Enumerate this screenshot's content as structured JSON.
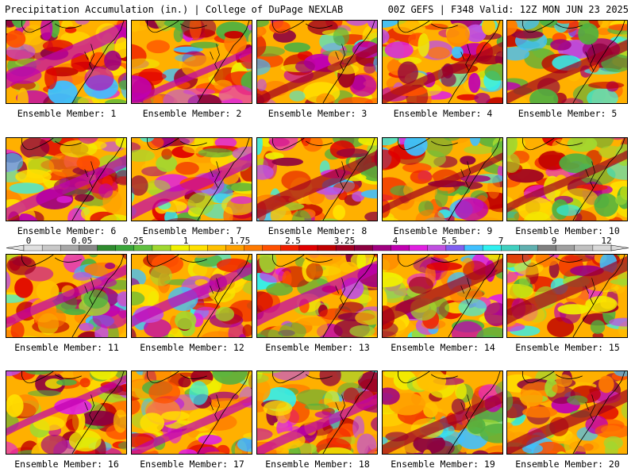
{
  "header": {
    "title": "Precipitation Accumulation (in.) | College of DuPage NEXLAB",
    "run_info": "00Z GEFS | F348 Valid: 12Z MON JUN 23 2025"
  },
  "legend": {
    "tick_labels": [
      "0",
      "0.05",
      "0.25",
      "1",
      "1.75",
      "2.5",
      "3.25",
      "4",
      "5.5",
      "7",
      "9",
      "12"
    ],
    "colors": [
      "#e0e0e0",
      "#c8c8c8",
      "#a8a8a8",
      "#888888",
      "#2e8b2e",
      "#3aa63a",
      "#60c040",
      "#a0d830",
      "#f0f000",
      "#ffe000",
      "#ffc000",
      "#ffa000",
      "#ff7a00",
      "#ff5000",
      "#f02000",
      "#e00000",
      "#c00000",
      "#a00020",
      "#8c0040",
      "#a00080",
      "#c000b0",
      "#e020e0",
      "#c050e0",
      "#8060f0",
      "#40c0ff",
      "#30f0f0",
      "#40d0c0",
      "#60b0b0",
      "#808080",
      "#a0a0a0",
      "#c0c0c0",
      "#d8d8d8"
    ]
  },
  "panels": [
    {
      "label": "Ensemble Member: 1"
    },
    {
      "label": "Ensemble Member: 2"
    },
    {
      "label": "Ensemble Member: 3"
    },
    {
      "label": "Ensemble Member: 4"
    },
    {
      "label": "Ensemble Member: 5"
    },
    {
      "label": "Ensemble Member: 6"
    },
    {
      "label": "Ensemble Member: 7"
    },
    {
      "label": "Ensemble Member: 8"
    },
    {
      "label": "Ensemble Member: 9"
    },
    {
      "label": "Ensemble Member: 10"
    },
    {
      "label": "Ensemble Member: 11"
    },
    {
      "label": "Ensemble Member: 12"
    },
    {
      "label": "Ensemble Member: 13"
    },
    {
      "label": "Ensemble Member: 14"
    },
    {
      "label": "Ensemble Member: 15"
    },
    {
      "label": "Ensemble Member: 16"
    },
    {
      "label": "Ensemble Member: 17"
    },
    {
      "label": "Ensemble Member: 18"
    },
    {
      "label": "Ensemble Member: 19"
    },
    {
      "label": "Ensemble Member: 20"
    }
  ]
}
